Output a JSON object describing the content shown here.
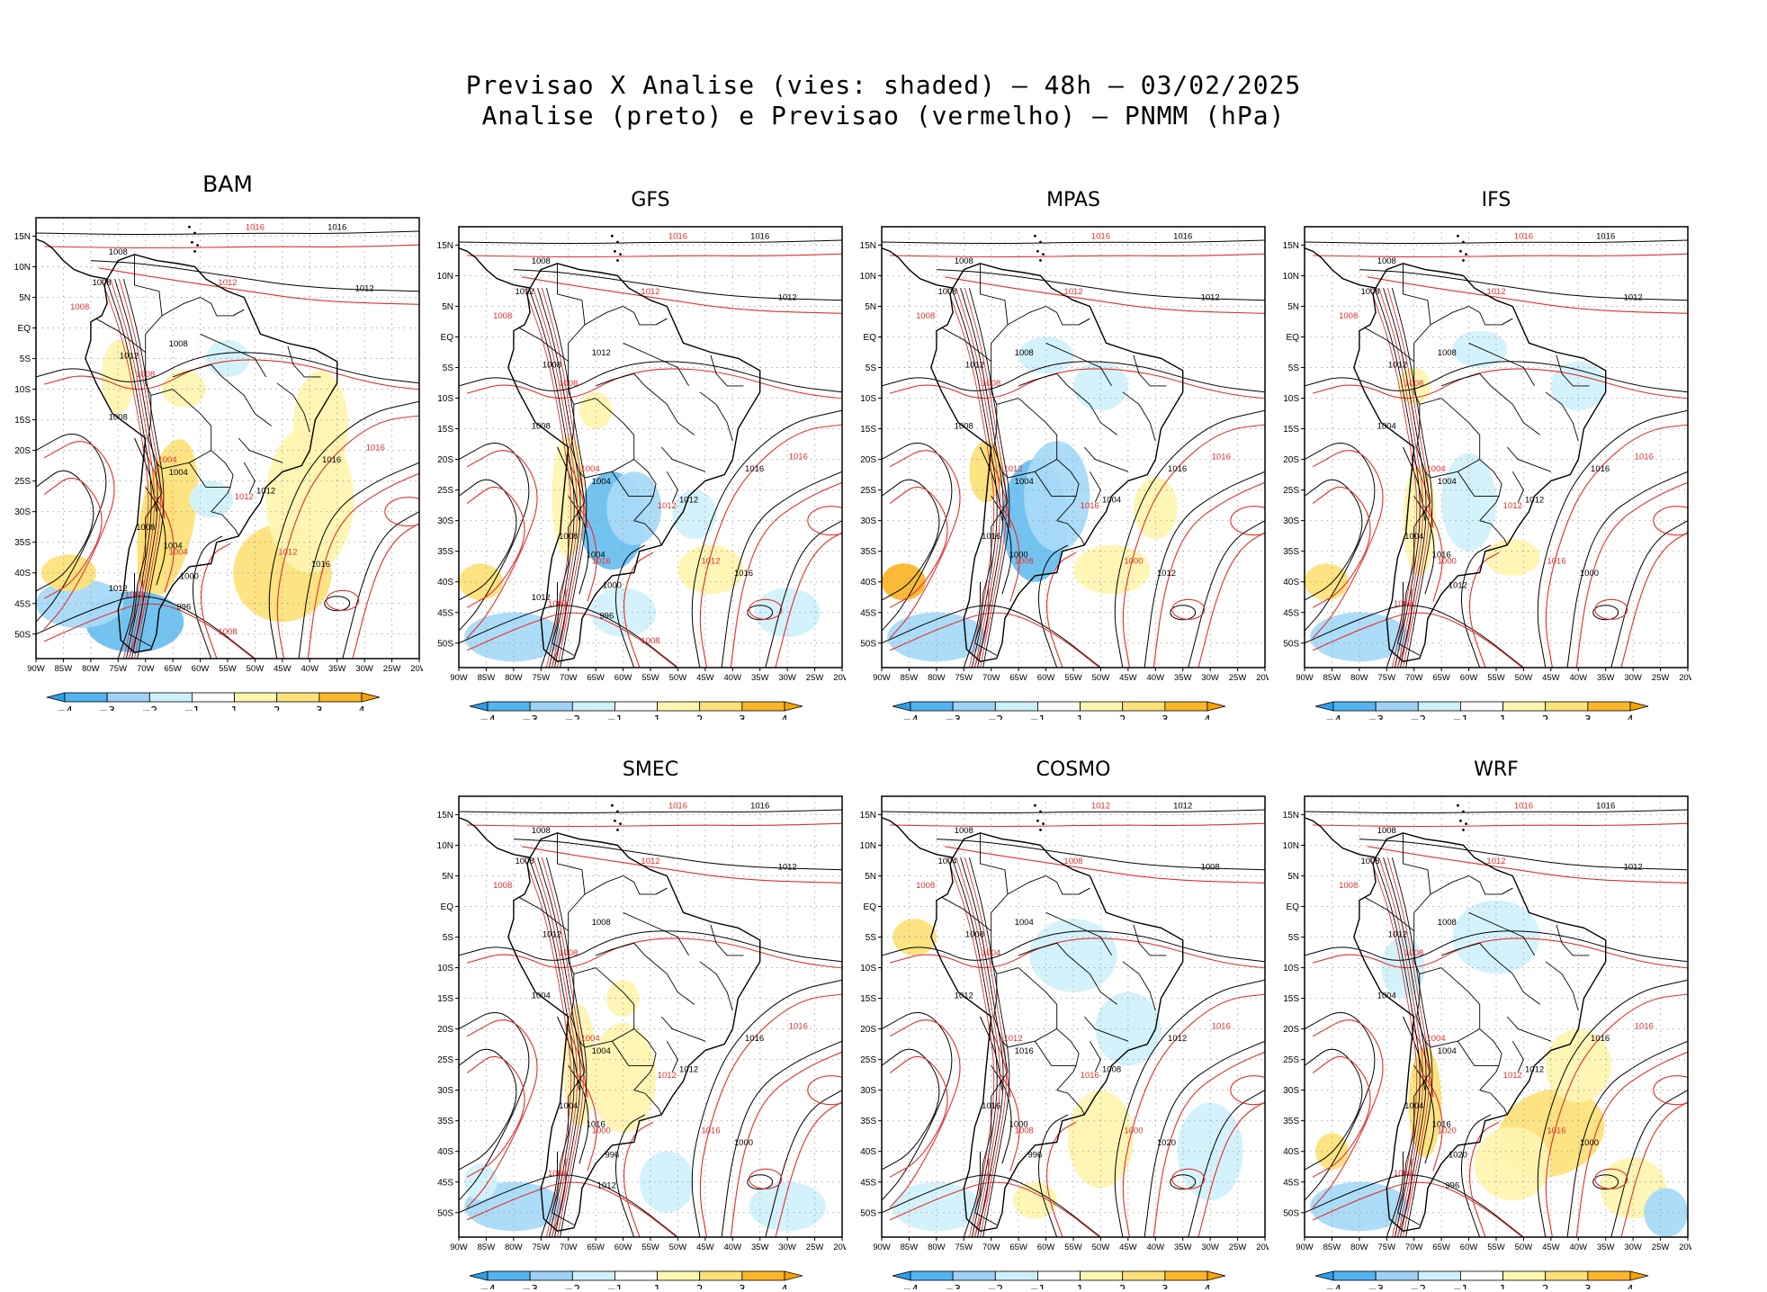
{
  "figure": {
    "title_line1": "Previsao X Analise (vies: shaded) — 48h — 03/02/2025",
    "title_line2": "Analise (preto) e Previsao (vermelho) — PNMM (hPa)"
  },
  "map_axes": {
    "lat_labels": [
      "15N",
      "10N",
      "5N",
      "EQ",
      "5S",
      "10S",
      "15S",
      "20S",
      "25S",
      "30S",
      "35S",
      "40S",
      "45S",
      "50S"
    ],
    "lon_labels": [
      "90W",
      "85W",
      "80W",
      "75W",
      "70W",
      "65W",
      "60W",
      "55W",
      "50W",
      "45W",
      "40W",
      "35W",
      "30W",
      "25W",
      "20W"
    ]
  },
  "colorbar": {
    "labels": [
      "−4",
      "−3",
      "−2",
      "−1",
      "1",
      "2",
      "3",
      "4"
    ],
    "colors": [
      "#52b4f0",
      "#9fd2f5",
      "#cdf0fb",
      "#ffffff",
      "#fff7b0",
      "#fde27a",
      "#fbb62a"
    ]
  },
  "contour_colors": {
    "analysis": "#000000",
    "forecast": "#e0302c"
  },
  "shading_colors": {
    "neg_strong": "#6cc0f0",
    "neg": "#a8daf7",
    "neg_weak": "#d2f1fb",
    "pos_weak": "#fff4b0",
    "pos": "#fde27a",
    "pos_strong": "#fbb62a"
  },
  "panels": [
    {
      "name": "BAM",
      "labels_black": [
        "1016",
        "1012",
        "1008",
        "1008",
        "1008",
        "1012",
        "1008",
        "1004",
        "1016",
        "1012",
        "1008",
        "1004",
        "1016",
        "1000",
        "996",
        "1012"
      ],
      "labels_red": [
        "1016",
        "1012",
        "1008",
        "1008",
        "1004",
        "1012",
        "1016",
        "1012",
        "1004",
        "1000",
        "1008"
      ]
    },
    {
      "name": "GFS",
      "labels_black": [
        "1016",
        "1012",
        "1008",
        "1012",
        "1008",
        "1008",
        "1012",
        "1004",
        "1016",
        "1012",
        "1008",
        "1004",
        "1016",
        "1000",
        "996",
        "1012"
      ],
      "labels_red": [
        "1016",
        "1012",
        "1008",
        "1008",
        "1004",
        "1012",
        "1016",
        "1012",
        "1016",
        "1000",
        "1008"
      ]
    },
    {
      "name": "MPAS",
      "labels_black": [
        "1016",
        "1012",
        "1008",
        "1008",
        "1008",
        "1012",
        "1008",
        "1004",
        "1016",
        "1004",
        "1016",
        "1000",
        "1012"
      ],
      "labels_red": [
        "1016",
        "1012",
        "1008",
        "1008",
        "1012",
        "1016",
        "1016",
        "1000",
        "1008"
      ]
    },
    {
      "name": "IFS",
      "labels_black": [
        "1016",
        "1012",
        "1008",
        "1008",
        "1004",
        "1012",
        "1008",
        "1004",
        "1016",
        "1012",
        "1004",
        "1016",
        "1000",
        "1012"
      ],
      "labels_red": [
        "1016",
        "1012",
        "1008",
        "1008",
        "1004",
        "1012",
        "1016",
        "1016",
        "1000",
        "1008"
      ]
    },
    {
      "name": "SMEC",
      "labels_black": [
        "1016",
        "1012",
        "1008",
        "1008",
        "1004",
        "1012",
        "1008",
        "1004",
        "1016",
        "1012",
        "1004",
        "1016",
        "1000",
        "996",
        "1012"
      ],
      "labels_red": [
        "1016",
        "1012",
        "1008",
        "1008",
        "1004",
        "1012",
        "1016",
        "1016",
        "1000",
        "1008"
      ]
    },
    {
      "name": "COSMO",
      "labels_black": [
        "1012",
        "1008",
        "1008",
        "1004",
        "1012",
        "1008",
        "1004",
        "1016",
        "1012",
        "1008",
        "1016",
        "1000",
        "1020",
        "996"
      ],
      "labels_red": [
        "1012",
        "1008",
        "1008",
        "1004",
        "1012",
        "1016",
        "1016",
        "1000",
        "1008"
      ]
    },
    {
      "name": "WRF",
      "labels_black": [
        "1016",
        "1012",
        "1008",
        "1008",
        "1004",
        "1012",
        "1008",
        "1004",
        "1016",
        "1012",
        "1004",
        "1016",
        "1000",
        "1020",
        "996"
      ],
      "labels_red": [
        "1016",
        "1012",
        "1008",
        "1008",
        "1004",
        "1012",
        "1016",
        "1016",
        "1020",
        "1008"
      ]
    }
  ]
}
